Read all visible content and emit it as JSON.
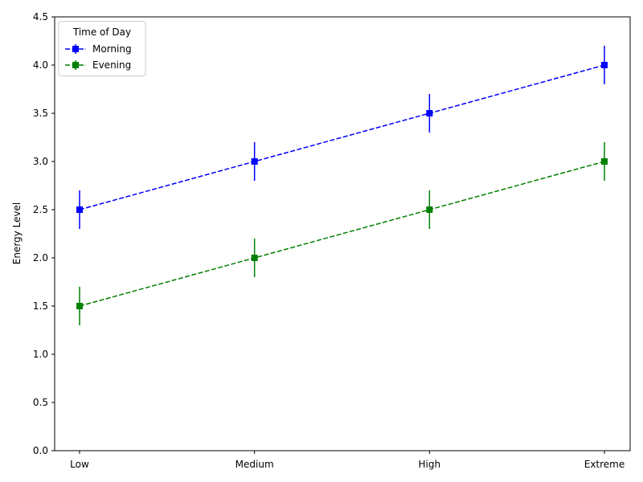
{
  "chart_data": {
    "type": "line",
    "title": "",
    "xlabel": "",
    "ylabel": "Energy Level",
    "categories": [
      "Low",
      "Medium",
      "High",
      "Extreme"
    ],
    "ylim": [
      0,
      4.5
    ],
    "yticks": [
      "0.0",
      "0.5",
      "1.0",
      "1.5",
      "2.0",
      "2.5",
      "3.0",
      "3.5",
      "4.0",
      "4.5"
    ],
    "grid": false,
    "legend": {
      "title": "Time of Day",
      "placement": "top-left"
    },
    "series": [
      {
        "name": "Morning",
        "values": [
          2.5,
          3.0,
          3.5,
          4.0
        ],
        "error": [
          0.2,
          0.2,
          0.2,
          0.2
        ],
        "color": "#0000ff",
        "marker": "square",
        "line_style": "dashed"
      },
      {
        "name": "Evening",
        "values": [
          1.5,
          2.0,
          2.5,
          3.0
        ],
        "error": [
          0.2,
          0.2,
          0.2,
          0.2
        ],
        "color": "#008000",
        "marker": "square",
        "line_style": "dashed"
      }
    ]
  }
}
